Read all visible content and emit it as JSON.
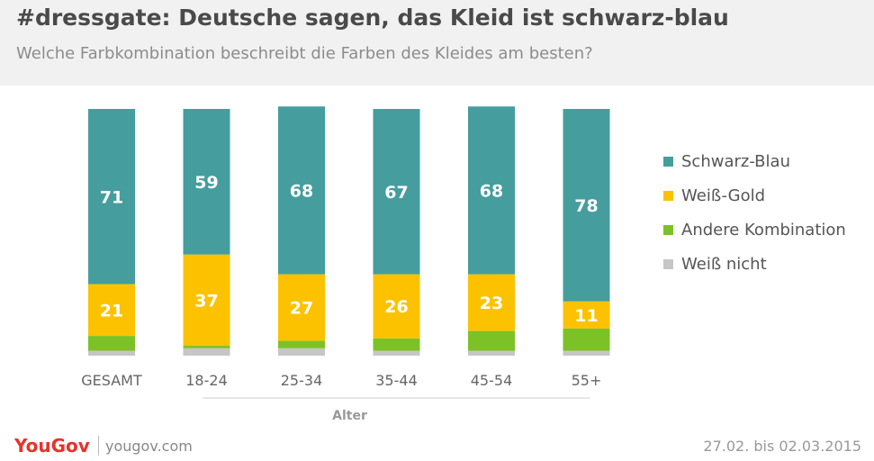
{
  "header": {
    "title": "#dressgate: Deutsche sagen, das Kleid ist schwarz-blau",
    "subtitle": "Welche Farbkombination beschreibt die Farben des Kleides am besten?"
  },
  "footer": {
    "brand": "YouGov",
    "url": "yougov.com",
    "date_range": "27.02. bis 02.03.2015"
  },
  "colors": {
    "schwarz_blau": "#459d9e",
    "weiss_gold": "#fcc200",
    "andere": "#7cc226",
    "weiss_nicht": "#c6c6c6"
  },
  "chart_data": {
    "type": "bar",
    "stacked": true,
    "categories": [
      "GESAMT",
      "18-24",
      "25-34",
      "35-44",
      "45-54",
      "55+"
    ],
    "xlabel": "Alter",
    "ylabel": "",
    "ylim": [
      0,
      100
    ],
    "grid": false,
    "legend_position": "right",
    "series": [
      {
        "name": "Weiß nicht",
        "values": [
          2,
          3,
          3,
          2,
          2,
          2
        ],
        "color": "#c6c6c6",
        "show_labels": false
      },
      {
        "name": "Andere Kombination",
        "values": [
          6,
          1,
          3,
          5,
          8,
          9
        ],
        "color": "#7cc226",
        "show_labels": false
      },
      {
        "name": "Weiß-Gold",
        "values": [
          21,
          37,
          27,
          26,
          23,
          11
        ],
        "color": "#fcc200",
        "show_labels": true
      },
      {
        "name": "Schwarz-Blau",
        "values": [
          71,
          59,
          68,
          67,
          68,
          78
        ],
        "color": "#459d9e",
        "show_labels": true
      }
    ],
    "legend": [
      "Schwarz-Blau",
      "Weiß-Gold",
      "Andere Kombination",
      "Weiß nicht"
    ]
  }
}
